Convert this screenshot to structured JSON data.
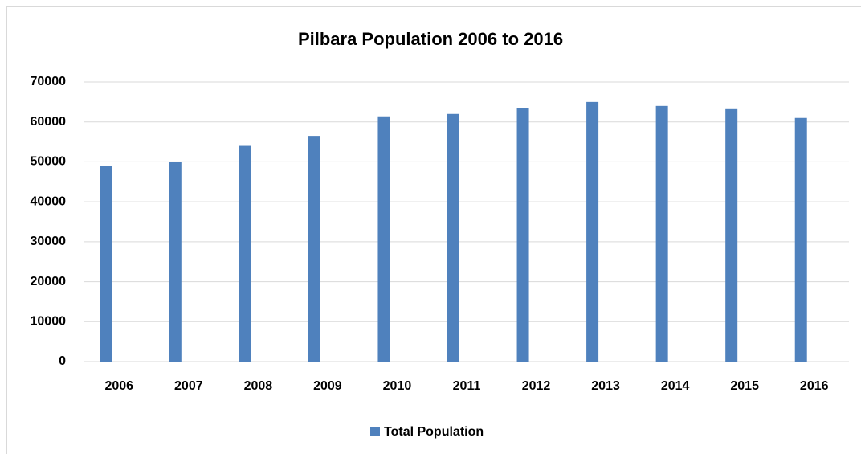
{
  "chart_data": {
    "type": "bar",
    "title": "Pilbara Population 2006 to 2016",
    "categories": [
      "2006",
      "2007",
      "2008",
      "2009",
      "2010",
      "2011",
      "2012",
      "2013",
      "2014",
      "2015",
      "2016"
    ],
    "series": [
      {
        "name": "Total Population",
        "color": "#4f81bd",
        "values": [
          49000,
          50000,
          54000,
          56500,
          61400,
          62000,
          63500,
          65000,
          64000,
          63200,
          61000
        ]
      }
    ],
    "ylim": [
      0,
      70000
    ],
    "yticks": [
      0,
      10000,
      20000,
      30000,
      40000,
      50000,
      60000,
      70000
    ],
    "grid": true,
    "legend": "bottom"
  }
}
